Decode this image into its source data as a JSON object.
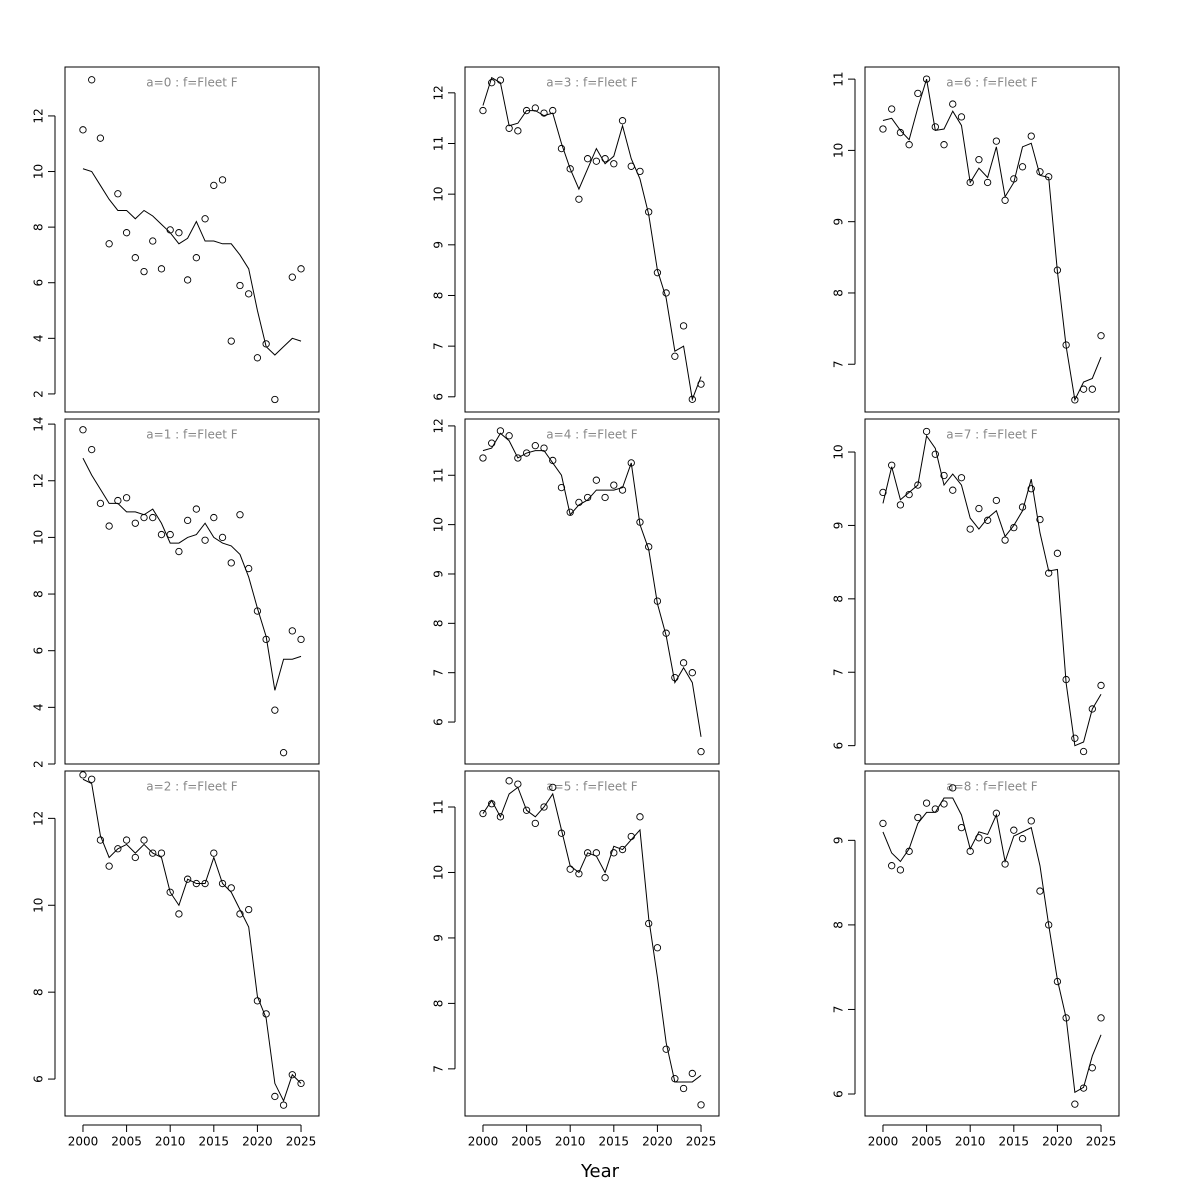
{
  "x_label": "Year",
  "chart_data": [
    {
      "type": "scatter-line",
      "title": "a=0 : f=Fleet F",
      "x": [
        2000,
        2001,
        2002,
        2003,
        2004,
        2005,
        2006,
        2007,
        2008,
        2009,
        2010,
        2011,
        2012,
        2013,
        2014,
        2015,
        2016,
        2017,
        2018,
        2019,
        2020,
        2021,
        2022,
        2023,
        2024,
        2025
      ],
      "points": [
        11.5,
        13.3,
        11.2,
        7.4,
        9.2,
        7.8,
        6.9,
        6.4,
        7.5,
        6.5,
        7.9,
        7.8,
        6.1,
        6.9,
        8.3,
        9.5,
        9.7,
        3.9,
        5.9,
        5.6,
        3.3,
        3.8,
        1.8,
        null,
        6.2,
        6.5
      ],
      "line": [
        10.1,
        10.0,
        9.5,
        9.0,
        8.6,
        8.6,
        8.3,
        8.6,
        8.4,
        8.1,
        7.8,
        7.4,
        7.6,
        8.2,
        7.5,
        7.5,
        7.4,
        7.4,
        7.0,
        6.5,
        5.0,
        3.7,
        3.4,
        3.7,
        4.0,
        3.9
      ],
      "xlim": [
        1997.94,
        2027.06
      ],
      "ylim": [
        1.35,
        13.76
      ],
      "yticks": [
        2,
        4,
        6,
        8,
        10,
        12
      ]
    },
    {
      "type": "scatter-line",
      "title": "a=1 : f=Fleet F",
      "x": [
        2000,
        2001,
        2002,
        2003,
        2004,
        2005,
        2006,
        2007,
        2008,
        2009,
        2010,
        2011,
        2012,
        2013,
        2014,
        2015,
        2016,
        2017,
        2018,
        2019,
        2020,
        2021,
        2022,
        2023,
        2024,
        2025
      ],
      "points": [
        13.8,
        13.1,
        11.2,
        10.4,
        11.3,
        11.4,
        10.5,
        10.7,
        10.7,
        10.1,
        10.1,
        9.5,
        10.6,
        11.0,
        9.9,
        10.7,
        10.0,
        9.1,
        10.8,
        8.9,
        7.4,
        6.4,
        3.9,
        2.4,
        6.7,
        6.4
      ],
      "line": [
        12.8,
        12.2,
        11.7,
        11.2,
        11.2,
        10.9,
        10.9,
        10.8,
        11.0,
        10.5,
        9.8,
        9.8,
        10.0,
        10.1,
        10.5,
        10.0,
        9.8,
        9.7,
        9.4,
        8.6,
        7.5,
        6.5,
        4.6,
        5.7,
        5.7,
        5.8
      ],
      "xlim": [
        1997.94,
        2027.06
      ],
      "ylim": [
        2,
        14.18
      ],
      "yticks": [
        2,
        4,
        6,
        8,
        10,
        12,
        14
      ]
    },
    {
      "type": "scatter-line",
      "title": "a=2 : f=Fleet F",
      "x": [
        2000,
        2001,
        2002,
        2003,
        2004,
        2005,
        2006,
        2007,
        2008,
        2009,
        2010,
        2011,
        2012,
        2013,
        2014,
        2015,
        2016,
        2017,
        2018,
        2019,
        2020,
        2021,
        2022,
        2023,
        2024,
        2025
      ],
      "points": [
        13.0,
        12.9,
        11.5,
        10.9,
        11.3,
        11.5,
        11.1,
        11.5,
        11.2,
        11.2,
        10.3,
        9.8,
        10.6,
        10.5,
        10.5,
        11.2,
        10.5,
        10.4,
        9.8,
        9.9,
        7.8,
        7.5,
        5.6,
        5.4,
        6.1,
        5.9
      ],
      "line": [
        12.9,
        12.8,
        11.6,
        11.1,
        11.3,
        11.4,
        11.2,
        11.4,
        11.2,
        11.1,
        10.3,
        10.0,
        10.6,
        10.5,
        10.5,
        11.1,
        10.5,
        10.3,
        9.9,
        9.5,
        7.9,
        7.4,
        5.9,
        5.5,
        6.1,
        5.9
      ],
      "xlim": [
        1997.94,
        2027.06
      ],
      "xticks": [
        2000,
        2005,
        2010,
        2015,
        2020,
        2025
      ],
      "ylim": [
        5.15,
        13.09
      ],
      "yticks": [
        6,
        8,
        10,
        12
      ]
    },
    {
      "type": "scatter-line",
      "title": "a=3 : f=Fleet F",
      "x": [
        2000,
        2001,
        2002,
        2003,
        2004,
        2005,
        2006,
        2007,
        2008,
        2009,
        2010,
        2011,
        2012,
        2013,
        2014,
        2015,
        2016,
        2017,
        2018,
        2019,
        2020,
        2021,
        2022,
        2023,
        2024,
        2025
      ],
      "points": [
        11.65,
        12.2,
        12.25,
        11.3,
        11.25,
        11.65,
        11.7,
        11.6,
        11.65,
        10.9,
        10.5,
        9.9,
        10.7,
        10.65,
        10.7,
        10.6,
        11.45,
        10.55,
        10.45,
        9.65,
        8.45,
        8.05,
        6.8,
        7.4,
        5.95,
        6.25
      ],
      "line": [
        11.75,
        12.3,
        12.2,
        11.35,
        11.4,
        11.65,
        11.65,
        11.55,
        11.6,
        11.0,
        10.5,
        10.1,
        10.5,
        10.9,
        10.6,
        10.75,
        11.35,
        10.7,
        10.3,
        9.6,
        8.5,
        7.95,
        6.9,
        7.0,
        5.95,
        6.4
      ],
      "xlim": [
        1997.94,
        2027.06
      ],
      "ylim": [
        5.7,
        12.51
      ],
      "yticks": [
        6,
        7,
        8,
        9,
        10,
        11,
        12
      ]
    },
    {
      "type": "scatter-line",
      "title": "a=4 : f=Fleet F",
      "x": [
        2000,
        2001,
        2002,
        2003,
        2004,
        2005,
        2006,
        2007,
        2008,
        2009,
        2010,
        2011,
        2012,
        2013,
        2014,
        2015,
        2016,
        2017,
        2018,
        2019,
        2020,
        2021,
        2022,
        2023,
        2024,
        2025
      ],
      "points": [
        11.35,
        11.65,
        11.9,
        11.8,
        11.35,
        11.45,
        11.6,
        11.55,
        11.3,
        10.75,
        10.25,
        10.45,
        10.55,
        10.9,
        10.55,
        10.8,
        10.7,
        11.25,
        10.05,
        9.55,
        8.45,
        7.8,
        6.9,
        7.2,
        7.0,
        5.4
      ],
      "line": [
        11.5,
        11.55,
        11.85,
        11.7,
        11.35,
        11.45,
        11.5,
        11.5,
        11.25,
        11.0,
        10.2,
        10.4,
        10.5,
        10.7,
        10.7,
        10.7,
        10.75,
        11.25,
        10.0,
        9.5,
        8.4,
        7.75,
        6.8,
        7.1,
        6.8,
        5.7
      ],
      "xlim": [
        1997.94,
        2027.06
      ],
      "ylim": [
        5.15,
        12.14
      ],
      "yticks": [
        6,
        7,
        8,
        9,
        10,
        11,
        12
      ]
    },
    {
      "type": "scatter-line",
      "title": "a=5 : f=Fleet F",
      "x": [
        2000,
        2001,
        2002,
        2003,
        2004,
        2005,
        2006,
        2007,
        2008,
        2009,
        2010,
        2011,
        2012,
        2013,
        2014,
        2015,
        2016,
        2017,
        2018,
        2019,
        2020,
        2021,
        2022,
        2023,
        2024,
        2025
      ],
      "points": [
        10.9,
        11.05,
        10.85,
        11.4,
        11.35,
        10.95,
        10.75,
        11.0,
        11.3,
        10.6,
        10.05,
        9.98,
        10.3,
        10.3,
        9.92,
        10.3,
        10.35,
        10.55,
        10.85,
        9.22,
        8.85,
        7.3,
        6.85,
        6.7,
        6.93,
        6.45
      ],
      "line": [
        10.9,
        11.1,
        10.85,
        11.2,
        11.3,
        10.95,
        10.85,
        11.0,
        11.2,
        10.65,
        10.1,
        10.0,
        10.3,
        10.25,
        10.0,
        10.4,
        10.35,
        10.5,
        10.65,
        9.3,
        8.4,
        7.4,
        6.8,
        6.8,
        6.8,
        6.9
      ],
      "xlim": [
        1997.94,
        2027.06
      ],
      "xticks": [
        2000,
        2005,
        2010,
        2015,
        2020,
        2025
      ],
      "ylim": [
        6.28,
        11.55
      ],
      "yticks": [
        7,
        8,
        9,
        10,
        11
      ]
    },
    {
      "type": "scatter-line",
      "title": "a=6 : f=Fleet F",
      "x": [
        2000,
        2001,
        2002,
        2003,
        2004,
        2005,
        2006,
        2007,
        2008,
        2009,
        2010,
        2011,
        2012,
        2013,
        2014,
        2015,
        2016,
        2017,
        2018,
        2019,
        2020,
        2021,
        2022,
        2023,
        2024,
        2025
      ],
      "points": [
        10.3,
        10.58,
        10.25,
        10.08,
        10.8,
        11.0,
        10.33,
        10.08,
        10.65,
        10.47,
        9.55,
        9.87,
        9.55,
        10.13,
        9.3,
        9.6,
        9.77,
        10.2,
        9.7,
        9.63,
        8.32,
        7.27,
        6.5,
        6.65,
        6.65,
        7.4
      ],
      "line": [
        10.42,
        10.45,
        10.28,
        10.15,
        10.6,
        11.0,
        10.28,
        10.3,
        10.55,
        10.35,
        9.55,
        9.75,
        9.62,
        10.05,
        9.35,
        9.55,
        10.05,
        10.1,
        9.65,
        9.62,
        8.3,
        7.25,
        6.5,
        6.75,
        6.8,
        7.1
      ],
      "xlim": [
        1997.94,
        2027.06
      ],
      "ylim": [
        6.33,
        11.17
      ],
      "yticks": [
        7,
        8,
        9,
        10,
        11
      ]
    },
    {
      "type": "scatter-line",
      "title": "a=7 : f=Fleet F",
      "x": [
        2000,
        2001,
        2002,
        2003,
        2004,
        2005,
        2006,
        2007,
        2008,
        2009,
        2010,
        2011,
        2012,
        2013,
        2014,
        2015,
        2016,
        2017,
        2018,
        2019,
        2020,
        2021,
        2022,
        2023,
        2024,
        2025
      ],
      "points": [
        9.45,
        9.82,
        9.28,
        9.42,
        9.55,
        10.28,
        9.97,
        9.68,
        9.48,
        9.65,
        8.95,
        9.23,
        9.07,
        9.34,
        8.8,
        8.97,
        9.25,
        9.5,
        9.08,
        8.35,
        8.62,
        6.9,
        6.1,
        5.92,
        6.5,
        6.82
      ],
      "line": [
        9.3,
        9.8,
        9.35,
        9.45,
        9.55,
        10.22,
        10.05,
        9.55,
        9.7,
        9.55,
        9.1,
        8.95,
        9.1,
        9.2,
        8.85,
        9.0,
        9.2,
        9.63,
        8.9,
        8.38,
        8.4,
        6.85,
        6.0,
        6.05,
        6.5,
        6.7
      ],
      "xlim": [
        1997.94,
        2027.06
      ],
      "ylim": [
        5.75,
        10.45
      ],
      "yticks": [
        6,
        7,
        8,
        9,
        10
      ]
    },
    {
      "type": "scatter-line",
      "title": "a=8 : f=Fleet F",
      "x": [
        2000,
        2001,
        2002,
        2003,
        2004,
        2005,
        2006,
        2007,
        2008,
        2009,
        2010,
        2011,
        2012,
        2013,
        2014,
        2015,
        2016,
        2017,
        2018,
        2019,
        2020,
        2021,
        2022,
        2023,
        2024,
        2025
      ],
      "points": [
        9.2,
        8.7,
        8.65,
        8.87,
        9.27,
        9.44,
        9.37,
        9.43,
        9.62,
        9.15,
        8.87,
        9.03,
        9.0,
        9.32,
        8.72,
        9.12,
        9.02,
        9.23,
        8.4,
        8.0,
        7.33,
        6.9,
        5.88,
        6.07,
        6.31,
        6.9
      ],
      "line": [
        9.1,
        8.85,
        8.75,
        8.9,
        9.2,
        9.33,
        9.33,
        9.5,
        9.5,
        9.3,
        8.9,
        9.1,
        9.07,
        9.3,
        8.75,
        9.05,
        9.1,
        9.15,
        8.7,
        8.0,
        7.35,
        6.9,
        6.02,
        6.08,
        6.45,
        6.7
      ],
      "xlim": [
        1997.94,
        2027.06
      ],
      "xticks": [
        2000,
        2005,
        2010,
        2015,
        2020,
        2025
      ],
      "ylim": [
        5.74,
        9.82
      ],
      "yticks": [
        6,
        7,
        8,
        9
      ]
    }
  ]
}
